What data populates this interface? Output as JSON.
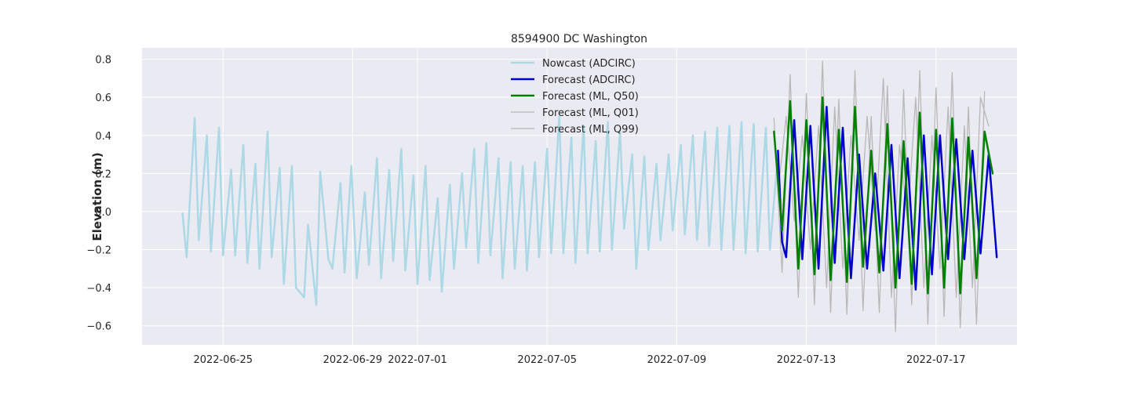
{
  "chart_data": {
    "type": "line",
    "title": "8594900 DC Washington",
    "xlabel": "",
    "ylabel": "Elevation (m)",
    "x_type": "date",
    "xlim": [
      "2022-06-22T12:00",
      "2022-07-19T12:00"
    ],
    "ylim": [
      -0.7,
      0.86
    ],
    "grid": true,
    "legend_position": "top-center",
    "xticks": [
      "2022-06-25",
      "2022-06-29",
      "2022-07-01",
      "2022-07-05",
      "2022-07-09",
      "2022-07-13",
      "2022-07-17"
    ],
    "yticks": [
      -0.6,
      -0.4,
      -0.2,
      0.0,
      0.2,
      0.4,
      0.6,
      0.8
    ],
    "ytick_labels": [
      "−0.6",
      "−0.4",
      "−0.2",
      "0.0",
      "0.2",
      "0.4",
      "0.6",
      "0.8"
    ],
    "series": [
      {
        "name": "Nowcast (ADCIRC)",
        "color": "#add8e6",
        "width": 2.5,
        "x": [
          "2022-06-23T18:00",
          "2022-06-23T21:00",
          "2022-06-24T03:00",
          "2022-06-24T06:00",
          "2022-06-24T12:00",
          "2022-06-24T15:00",
          "2022-06-24T21:00",
          "2022-06-25T00:00",
          "2022-06-25T06:00",
          "2022-06-25T09:00",
          "2022-06-25T15:00",
          "2022-06-25T18:00",
          "2022-06-26T00:00",
          "2022-06-26T03:00",
          "2022-06-26T09:00",
          "2022-06-26T12:00",
          "2022-06-26T18:00",
          "2022-06-26T21:00",
          "2022-06-27T03:00",
          "2022-06-27T06:00",
          "2022-06-27T12:00",
          "2022-06-27T15:00",
          "2022-06-27T21:00",
          "2022-06-28T00:00",
          "2022-06-28T06:00",
          "2022-06-28T09:00",
          "2022-06-28T15:00",
          "2022-06-28T18:00",
          "2022-06-28T23:00",
          "2022-06-29T03:00",
          "2022-06-29T09:00",
          "2022-06-29T12:00",
          "2022-06-29T18:00",
          "2022-06-29T21:00",
          "2022-06-30T03:00",
          "2022-06-30T06:00",
          "2022-06-30T12:00",
          "2022-06-30T15:00",
          "2022-06-30T21:00",
          "2022-07-01T00:00",
          "2022-07-01T06:00",
          "2022-07-01T09:00",
          "2022-07-01T15:00",
          "2022-07-01T18:00",
          "2022-07-02T00:00",
          "2022-07-02T03:00",
          "2022-07-02T09:00",
          "2022-07-02T12:00",
          "2022-07-02T18:00",
          "2022-07-02T21:00",
          "2022-07-03T03:00",
          "2022-07-03T06:00",
          "2022-07-03T12:00",
          "2022-07-03T15:00",
          "2022-07-03T21:00",
          "2022-07-04T00:00",
          "2022-07-04T06:00",
          "2022-07-04T09:00",
          "2022-07-04T15:00",
          "2022-07-04T18:00",
          "2022-07-05T00:00",
          "2022-07-05T03:00",
          "2022-07-05T09:00",
          "2022-07-05T12:00",
          "2022-07-05T18:00",
          "2022-07-05T21:00",
          "2022-07-06T03:00",
          "2022-07-06T06:00",
          "2022-07-06T12:00",
          "2022-07-06T15:00",
          "2022-07-06T21:00",
          "2022-07-07T00:00",
          "2022-07-07T06:00",
          "2022-07-07T09:00",
          "2022-07-07T15:00",
          "2022-07-07T18:00",
          "2022-07-08T00:00",
          "2022-07-08T03:00",
          "2022-07-08T09:00",
          "2022-07-08T12:00",
          "2022-07-08T18:00",
          "2022-07-08T21:00",
          "2022-07-09T03:00",
          "2022-07-09T06:00",
          "2022-07-09T12:00",
          "2022-07-09T15:00",
          "2022-07-09T21:00",
          "2022-07-10T00:00",
          "2022-07-10T06:00",
          "2022-07-10T09:00",
          "2022-07-10T15:00",
          "2022-07-10T18:00",
          "2022-07-11T00:00",
          "2022-07-11T03:00",
          "2022-07-11T09:00",
          "2022-07-11T12:00",
          "2022-07-11T18:00",
          "2022-07-11T21:00",
          "2022-07-12T03:00"
        ],
        "y": [
          -0.01,
          -0.24,
          0.49,
          -0.15,
          0.4,
          -0.21,
          0.44,
          -0.23,
          0.22,
          -0.23,
          0.35,
          -0.27,
          0.25,
          -0.3,
          0.42,
          -0.24,
          0.23,
          -0.38,
          0.24,
          -0.4,
          -0.45,
          -0.07,
          -0.49,
          0.21,
          -0.25,
          -0.3,
          0.15,
          -0.32,
          0.24,
          -0.35,
          0.1,
          -0.28,
          0.28,
          -0.35,
          0.22,
          -0.26,
          0.33,
          -0.31,
          0.19,
          -0.38,
          0.24,
          -0.36,
          0.07,
          -0.42,
          0.14,
          -0.3,
          0.2,
          -0.19,
          0.33,
          -0.27,
          0.36,
          -0.23,
          0.28,
          -0.35,
          0.26,
          -0.3,
          0.24,
          -0.31,
          0.26,
          -0.24,
          0.33,
          -0.22,
          0.5,
          -0.22,
          0.39,
          -0.27,
          0.45,
          -0.22,
          0.37,
          -0.21,
          0.47,
          -0.2,
          0.42,
          -0.09,
          0.3,
          -0.3,
          0.29,
          -0.2,
          0.25,
          -0.15,
          0.3,
          -0.1,
          0.35,
          -0.12,
          0.4,
          -0.15,
          0.42,
          -0.18,
          0.44,
          -0.2,
          0.45,
          -0.2,
          0.47,
          -0.22,
          0.46,
          -0.21,
          0.44,
          -0.2,
          0.3
        ]
      },
      {
        "name": "Forecast (ADCIRC)",
        "color": "#0000cd",
        "width": 2.5,
        "x": [
          "2022-07-12T03:00",
          "2022-07-12T06:00",
          "2022-07-12T09:00",
          "2022-07-12T15:00",
          "2022-07-12T21:00",
          "2022-07-13T03:00",
          "2022-07-13T09:00",
          "2022-07-13T15:00",
          "2022-07-13T21:00",
          "2022-07-14T03:00",
          "2022-07-14T09:00",
          "2022-07-14T15:00",
          "2022-07-14T21:00",
          "2022-07-15T03:00",
          "2022-07-15T09:00",
          "2022-07-15T15:00",
          "2022-07-15T21:00",
          "2022-07-16T03:00",
          "2022-07-16T09:00",
          "2022-07-16T15:00",
          "2022-07-16T21:00",
          "2022-07-17T03:00",
          "2022-07-17T09:00",
          "2022-07-17T15:00",
          "2022-07-17T21:00",
          "2022-07-18T03:00",
          "2022-07-18T09:00",
          "2022-07-18T15:00",
          "2022-07-18T21:00"
        ],
        "y": [
          0.32,
          -0.16,
          -0.24,
          0.48,
          -0.25,
          0.45,
          -0.3,
          0.55,
          -0.27,
          0.44,
          -0.35,
          0.3,
          -0.3,
          0.2,
          -0.31,
          0.35,
          -0.35,
          0.28,
          -0.41,
          0.4,
          -0.33,
          0.4,
          -0.25,
          0.38,
          -0.25,
          0.32,
          -0.22,
          0.3,
          -0.24
        ]
      },
      {
        "name": "Forecast (ML, Q50)",
        "color": "#008000",
        "width": 2.5,
        "x": [
          "2022-07-12T00:00",
          "2022-07-12T06:00",
          "2022-07-12T12:00",
          "2022-07-12T18:00",
          "2022-07-13T00:00",
          "2022-07-13T06:00",
          "2022-07-13T12:00",
          "2022-07-13T18:00",
          "2022-07-14T00:00",
          "2022-07-14T06:00",
          "2022-07-14T12:00",
          "2022-07-14T18:00",
          "2022-07-15T00:00",
          "2022-07-15T06:00",
          "2022-07-15T12:00",
          "2022-07-15T18:00",
          "2022-07-16T00:00",
          "2022-07-16T06:00",
          "2022-07-16T12:00",
          "2022-07-16T18:00",
          "2022-07-17T00:00",
          "2022-07-17T06:00",
          "2022-07-17T12:00",
          "2022-07-17T18:00",
          "2022-07-18T00:00",
          "2022-07-18T06:00",
          "2022-07-18T12:00",
          "2022-07-18T18:00"
        ],
        "y": [
          0.42,
          -0.1,
          0.58,
          -0.3,
          0.48,
          -0.33,
          0.6,
          -0.36,
          0.43,
          -0.37,
          0.55,
          -0.29,
          0.32,
          -0.32,
          0.46,
          -0.4,
          0.37,
          -0.38,
          0.52,
          -0.43,
          0.43,
          -0.4,
          0.49,
          -0.43,
          0.39,
          -0.35,
          0.42,
          0.2
        ]
      },
      {
        "name": "Forecast (ML, Q01)",
        "color": "#b8b8b8",
        "width": 1.3,
        "x": [
          "2022-07-12T00:00",
          "2022-07-12T06:00",
          "2022-07-12T12:00",
          "2022-07-12T18:00",
          "2022-07-13T00:00",
          "2022-07-13T06:00",
          "2022-07-13T12:00",
          "2022-07-13T18:00",
          "2022-07-14T00:00",
          "2022-07-14T06:00",
          "2022-07-14T12:00",
          "2022-07-14T18:00",
          "2022-07-15T00:00",
          "2022-07-15T06:00",
          "2022-07-15T12:00",
          "2022-07-15T18:00",
          "2022-07-16T00:00",
          "2022-07-16T06:00",
          "2022-07-16T12:00",
          "2022-07-16T18:00",
          "2022-07-17T00:00",
          "2022-07-17T06:00",
          "2022-07-17T12:00",
          "2022-07-17T18:00",
          "2022-07-18T00:00",
          "2022-07-18T06:00",
          "2022-07-18T12:00"
        ],
        "y": [
          0.49,
          -0.32,
          0.72,
          -0.45,
          0.62,
          -0.49,
          0.79,
          -0.53,
          0.59,
          -0.54,
          0.74,
          -0.52,
          0.5,
          -0.53,
          0.66,
          -0.63,
          0.64,
          -0.49,
          0.74,
          -0.59,
          0.65,
          -0.55,
          0.73,
          -0.61,
          0.55,
          -0.59,
          0.63
        ]
      },
      {
        "name": "Forecast (ML, Q99)",
        "color": "#b8b8b8",
        "width": 1.3,
        "x": [
          "2022-07-12T03:00",
          "2022-07-12T09:00",
          "2022-07-12T15:00",
          "2022-07-12T21:00",
          "2022-07-13T03:00",
          "2022-07-13T09:00",
          "2022-07-13T15:00",
          "2022-07-13T21:00",
          "2022-07-14T03:00",
          "2022-07-14T09:00",
          "2022-07-14T15:00",
          "2022-07-14T21:00",
          "2022-07-15T03:00",
          "2022-07-15T09:00",
          "2022-07-15T15:00",
          "2022-07-15T21:00",
          "2022-07-16T03:00",
          "2022-07-16T09:00",
          "2022-07-16T15:00",
          "2022-07-16T21:00",
          "2022-07-17T03:00",
          "2022-07-17T09:00",
          "2022-07-17T15:00",
          "2022-07-17T21:00",
          "2022-07-18T03:00",
          "2022-07-18T09:00",
          "2022-07-18T15:00"
        ],
        "y": [
          0.1,
          0.5,
          -0.05,
          0.4,
          -0.2,
          0.45,
          -0.4,
          0.55,
          -0.3,
          0.4,
          -0.15,
          0.5,
          -0.1,
          0.7,
          -0.45,
          0.35,
          -0.05,
          0.6,
          -0.4,
          0.4,
          -0.3,
          0.55,
          -0.45,
          0.45,
          -0.4,
          0.6,
          0.45
        ]
      }
    ]
  }
}
